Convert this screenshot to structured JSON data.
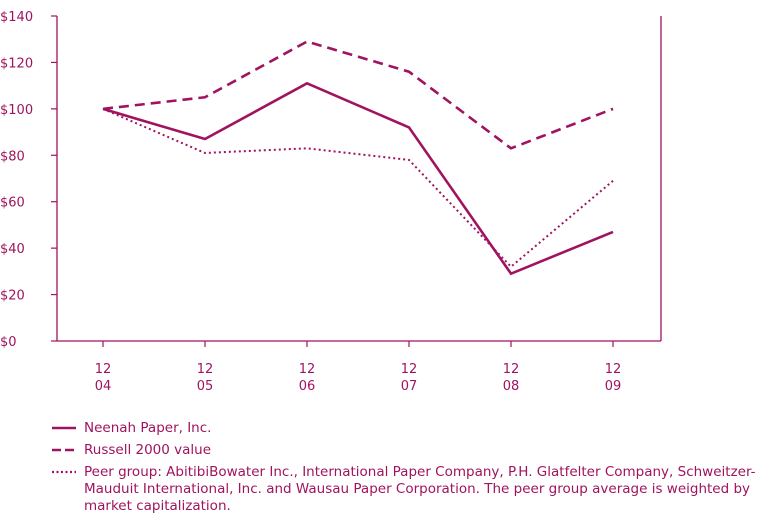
{
  "chart_data": {
    "type": "line",
    "categories": [
      "12\n04",
      "12\n05",
      "12\n06",
      "12\n07",
      "12\n08",
      "12\n09"
    ],
    "category_lines": [
      [
        "12",
        "04"
      ],
      [
        "12",
        "05"
      ],
      [
        "12",
        "06"
      ],
      [
        "12",
        "07"
      ],
      [
        "12",
        "08"
      ],
      [
        "12",
        "09"
      ]
    ],
    "y_ticks": [
      "$0",
      "$20",
      "$40",
      "$60",
      "$80",
      "$100",
      "$120",
      "$140"
    ],
    "ylim": [
      0,
      140
    ],
    "grid": false,
    "legend_position": "bottom",
    "colors": {
      "main": "#a0135f"
    },
    "series": [
      {
        "name": "Neenah Paper, Inc.",
        "style": "solid",
        "values": [
          100,
          87,
          111,
          92,
          29,
          47
        ]
      },
      {
        "name": "Russell 2000 value",
        "style": "dashed",
        "values": [
          100,
          105,
          129,
          116,
          83,
          100
        ]
      },
      {
        "name": "Peer group: AbitibiBowater Inc., International Paper Company, P.H. Glatfelter Company, Schweitzer-Mauduit International, Inc. and Wausau Paper Corporation. The peer group average is weighted by market capitalization.",
        "style": "dotted",
        "values": [
          100,
          81,
          83,
          78,
          32,
          69
        ]
      }
    ]
  }
}
